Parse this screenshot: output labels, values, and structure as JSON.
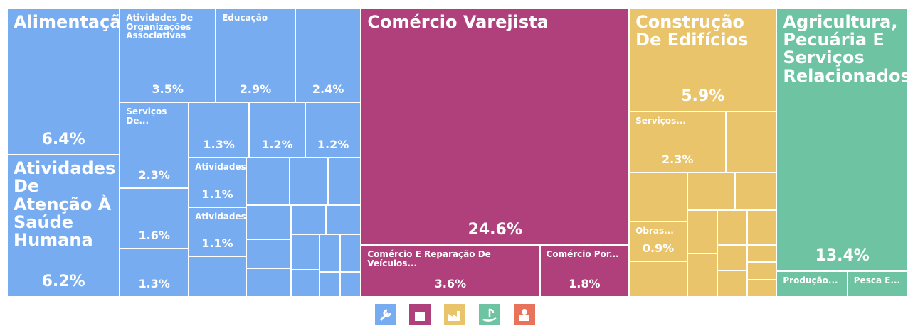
{
  "chart_data": {
    "type": "treemap",
    "groups": [
      {
        "color": "#78acf0",
        "names": [
          "Alimentação",
          "Atividades De Atenção À Saúde Humana",
          "Atividades De Organizações Associativas",
          "Educação",
          null,
          "Serviços De...",
          null,
          null,
          null,
          null,
          null,
          "Atividades...",
          "Atividades...",
          null,
          null,
          null,
          null,
          null,
          null,
          null,
          null,
          null,
          null,
          null,
          null,
          null,
          null,
          null
        ],
        "values": [
          6.4,
          6.2,
          3.5,
          2.9,
          2.4,
          2.3,
          1.6,
          1.3,
          1.3,
          1.2,
          1.2,
          1.1,
          1.1,
          0.9,
          0.8,
          0.7,
          0.6,
          0.6,
          0.5,
          0.5,
          0.4,
          0.4,
          0.4,
          0.3,
          0.3,
          0.3,
          0.2,
          0.2
        ],
        "value_labels": [
          "6.4%",
          "6.2%",
          "3.5%",
          "2.9%",
          "2.4%",
          "2.3%",
          "1.6%",
          "1.3%",
          "1.3%",
          "1.2%",
          "1.2%",
          "1.1%",
          "1.1%",
          null,
          null,
          null,
          null,
          null,
          null,
          null,
          null,
          null,
          null,
          null,
          null,
          null,
          null,
          null
        ]
      },
      {
        "color": "#b0407c",
        "names": [
          "Comércio Varejista",
          "Comércio E Reparação De Veículos...",
          "Comércio Por..."
        ],
        "values": [
          24.6,
          3.6,
          1.8
        ],
        "value_labels": [
          "24.6%",
          "3.6%",
          "1.8%"
        ]
      },
      {
        "color": "#e9c46b",
        "names": [
          "Construção De Edifícios",
          "Serviços...",
          null,
          null,
          "Obras...",
          null,
          null,
          null,
          null,
          null,
          null,
          null,
          null,
          null,
          null,
          null,
          null
        ],
        "values": [
          5.9,
          2.3,
          1.2,
          1.1,
          0.9,
          0.8,
          0.7,
          0.6,
          0.5,
          0.5,
          0.4,
          0.4,
          0.3,
          0.3,
          0.2,
          0.2,
          0.2
        ],
        "value_labels": [
          "5.9%",
          "2.3%",
          null,
          null,
          "0.9%",
          null,
          null,
          null,
          null,
          null,
          null,
          null,
          null,
          null,
          null,
          null,
          null
        ]
      },
      {
        "color": "#6ec4a2",
        "names": [
          "Agricultura, Pecuária E Serviços Relacionados",
          "Produção...",
          "Pesca E..."
        ],
        "values": [
          13.4,
          0.7,
          0.6
        ],
        "value_labels": [
          "13.4%",
          null,
          null
        ]
      }
    ]
  }
}
